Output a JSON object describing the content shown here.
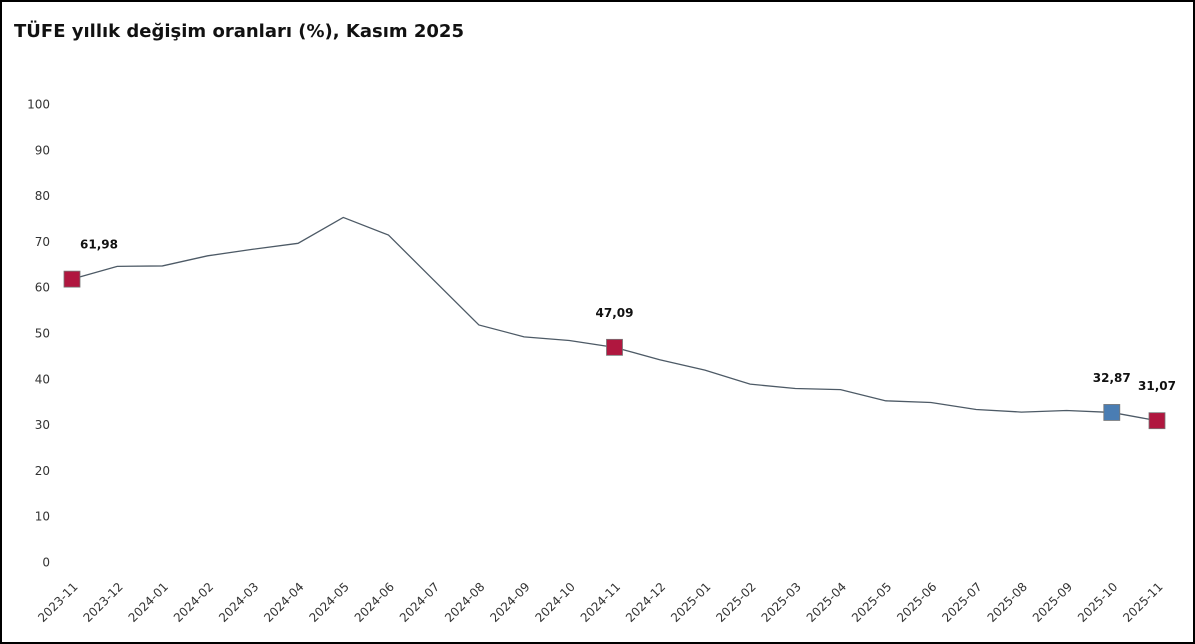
{
  "chart_data": {
    "type": "line",
    "title": "TÜFE yıllık değişim oranları (%), Kasım 2025",
    "categories": [
      "2023-11",
      "2023-12",
      "2024-01",
      "2024-02",
      "2024-03",
      "2024-04",
      "2024-05",
      "2024-06",
      "2024-07",
      "2024-08",
      "2024-09",
      "2024-10",
      "2024-11",
      "2024-12",
      "2025-01",
      "2025-02",
      "2025-03",
      "2025-04",
      "2025-05",
      "2025-06",
      "2025-07",
      "2025-08",
      "2025-09",
      "2025-10",
      "2025-11"
    ],
    "values": [
      61.98,
      64.77,
      64.86,
      67.07,
      68.5,
      69.8,
      75.45,
      71.6,
      61.78,
      51.97,
      49.38,
      48.58,
      47.09,
      44.38,
      42.12,
      39.05,
      38.1,
      37.86,
      35.41,
      35.05,
      33.52,
      32.95,
      33.29,
      32.87,
      31.07
    ],
    "value_labels": [
      "61,98",
      null,
      null,
      null,
      null,
      null,
      null,
      null,
      null,
      null,
      null,
      null,
      "47,09",
      null,
      null,
      null,
      null,
      null,
      null,
      null,
      null,
      null,
      null,
      "32,87",
      "31,07"
    ],
    "marker_colors": [
      "#b0173f",
      null,
      null,
      null,
      null,
      null,
      null,
      null,
      null,
      null,
      null,
      null,
      "#b0173f",
      null,
      null,
      null,
      null,
      null,
      null,
      null,
      null,
      null,
      null,
      "#4a7db3",
      "#b0173f"
    ],
    "color": "#4d5a66",
    "ylim": [
      0,
      100
    ],
    "yticks": [
      0,
      10,
      20,
      30,
      40,
      50,
      60,
      70,
      80,
      90,
      100
    ],
    "grid": false
  }
}
